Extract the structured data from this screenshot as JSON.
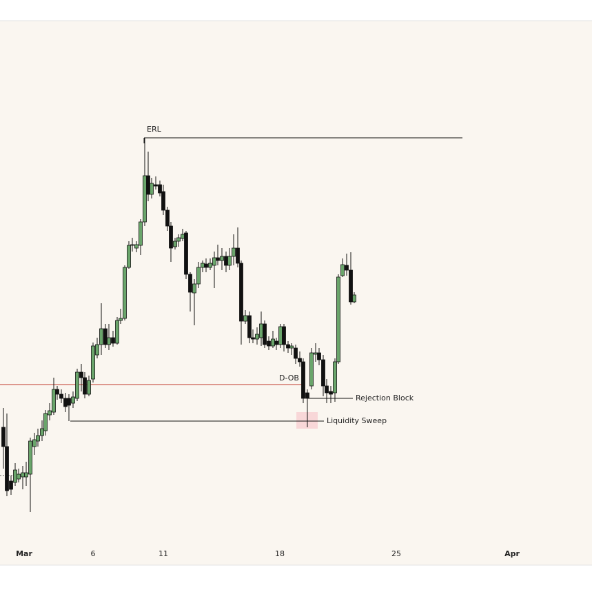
{
  "chart_data": {
    "type": "candlestick",
    "x": [
      5,
      10,
      16,
      22,
      27,
      33,
      38,
      44,
      50,
      55,
      61,
      66,
      72,
      78,
      83,
      89,
      95,
      100,
      106,
      112,
      118,
      123,
      129,
      135,
      141,
      147,
      153,
      158,
      164,
      170,
      175,
      181,
      187,
      192,
      198,
      204,
      210,
      215,
      220,
      226,
      232,
      237,
      243,
      248,
      254,
      259,
      265,
      270,
      276,
      282,
      288,
      294,
      299,
      305,
      311,
      316,
      322,
      328,
      333,
      339,
      345,
      350,
      356,
      362,
      367,
      373,
      379,
      384,
      390,
      396,
      401,
      407,
      412,
      418,
      423,
      429,
      435,
      440,
      446,
      452,
      458,
      463,
      469,
      474,
      480,
      486,
      491,
      497,
      503,
      509,
      514
    ],
    "open": [
      280,
      252,
      202,
      200,
      205,
      208,
      208,
      212,
      252,
      260,
      268,
      275,
      298,
      302,
      335,
      328,
      322,
      322,
      315,
      322,
      360,
      352,
      328,
      350,
      385,
      400,
      423,
      400,
      410,
      402,
      435,
      438,
      512,
      544,
      540,
      544,
      578,
      645,
      618,
      632,
      632,
      622,
      595,
      572,
      542,
      550,
      554,
      562,
      502,
      475,
      488,
      512,
      517,
      512,
      515,
      526,
      522,
      528,
      515,
      528,
      540,
      518,
      434,
      442,
      410,
      408,
      410,
      430,
      405,
      398,
      405,
      400,
      426,
      400,
      395,
      395,
      380,
      375,
      330,
      340,
      386,
      388,
      378,
      340,
      332,
      330,
      375,
      500,
      515,
      508,
      462
    ],
    "high": [
      308,
      300,
      210,
      228,
      220,
      224,
      230,
      265,
      272,
      278,
      290,
      305,
      315,
      352,
      340,
      335,
      330,
      328,
      332,
      365,
      372,
      360,
      355,
      403,
      410,
      460,
      430,
      430,
      420,
      440,
      452,
      515,
      550,
      555,
      550,
      582,
      700,
      680,
      642,
      644,
      638,
      632,
      600,
      578,
      555,
      560,
      568,
      565,
      505,
      495,
      520,
      522,
      525,
      525,
      535,
      545,
      540,
      535,
      540,
      560,
      570,
      522,
      450,
      448,
      422,
      425,
      448,
      435,
      412,
      420,
      410,
      430,
      430,
      405,
      402,
      400,
      390,
      380,
      335,
      395,
      402,
      395,
      385,
      350,
      340,
      380,
      502,
      525,
      532,
      534,
      476
    ],
    "low": [
      220,
      180,
      182,
      195,
      200,
      190,
      195,
      157,
      240,
      252,
      260,
      268,
      290,
      298,
      320,
      315,
      302,
      289,
      308,
      318,
      332,
      322,
      325,
      345,
      380,
      385,
      395,
      392,
      397,
      400,
      430,
      435,
      510,
      535,
      534,
      530,
      572,
      608,
      612,
      625,
      615,
      588,
      565,
      520,
      538,
      542,
      550,
      495,
      448,
      428,
      482,
      505,
      505,
      508,
      482,
      515,
      508,
      505,
      508,
      515,
      512,
      400,
      430,
      402,
      402,
      400,
      398,
      395,
      392,
      395,
      392,
      395,
      390,
      388,
      385,
      372,
      368,
      315,
      280,
      335,
      375,
      370,
      325,
      315,
      315,
      317,
      372,
      498,
      500,
      458,
      460
    ],
    "close": [
      252,
      188,
      190,
      218,
      212,
      214,
      214,
      260,
      262,
      268,
      278,
      300,
      304,
      335,
      328,
      322,
      310,
      312,
      324,
      360,
      352,
      328,
      348,
      398,
      400,
      423,
      400,
      410,
      402,
      435,
      438,
      512,
      544,
      545,
      545,
      578,
      645,
      618,
      634,
      630,
      620,
      595,
      572,
      540,
      550,
      555,
      560,
      502,
      476,
      488,
      512,
      518,
      512,
      518,
      526,
      522,
      528,
      515,
      528,
      540,
      518,
      434,
      442,
      410,
      408,
      415,
      430,
      400,
      398,
      408,
      400,
      426,
      400,
      395,
      398,
      380,
      375,
      322,
      322,
      388,
      388,
      378,
      340,
      330,
      328,
      375,
      498,
      516,
      508,
      462,
      472
    ],
    "up_color": "#6aa56b",
    "down_color": "#111111",
    "xlim": [
      0,
      859
    ],
    "ylim": [
      80,
      870
    ],
    "xticks": [
      {
        "value": 35,
        "label": "Mar"
      },
      {
        "value": 135,
        "label": "6"
      },
      {
        "value": 237,
        "label": "11"
      },
      {
        "value": 406,
        "label": "18"
      },
      {
        "value": 575,
        "label": "25"
      },
      {
        "value": 743,
        "label": "Apr"
      }
    ],
    "annotations": [
      {
        "label": "ERL",
        "value": 700,
        "x1": 209,
        "x2": 671,
        "color": "#111111"
      },
      {
        "label": "D-OB",
        "value": 342,
        "x1": 0,
        "x2": 440,
        "color": "#c0392b"
      },
      {
        "label": "Rejection Block",
        "value": 322,
        "x1": 446,
        "x2": 512,
        "color": "#111111"
      },
      {
        "label": "Liquidity Sweep",
        "value": 289,
        "x1": 102,
        "x2": 470,
        "color": "#111111"
      }
    ]
  }
}
